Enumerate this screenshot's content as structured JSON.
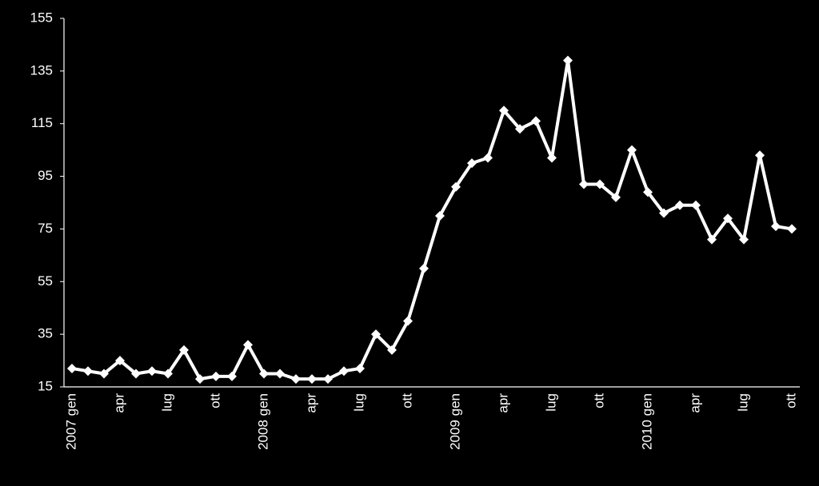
{
  "chart_data": {
    "type": "line",
    "categories": [
      "2007 gen",
      null,
      null,
      "apr",
      null,
      null,
      "lug",
      null,
      null,
      "ott",
      null,
      null,
      "2008 gen",
      null,
      null,
      "apr",
      null,
      null,
      "lug",
      null,
      null,
      "ott",
      null,
      null,
      "2009 gen",
      null,
      null,
      "apr",
      null,
      null,
      "lug",
      null,
      null,
      "ott",
      null,
      null,
      "2010 gen",
      null,
      null,
      "apr",
      null,
      null,
      "lug",
      null,
      null,
      "ott"
    ],
    "series": [
      {
        "color": "#ffffff",
        "values": [
          22,
          21,
          20,
          25,
          20,
          21,
          20,
          29,
          18,
          19,
          19,
          31,
          20,
          20,
          18,
          18,
          18,
          21,
          22,
          35,
          29,
          40,
          60,
          80,
          91,
          100,
          102,
          120,
          113,
          116,
          102,
          139,
          92,
          92,
          87,
          105,
          89,
          81,
          84,
          84,
          71,
          79,
          71,
          103,
          76,
          75
        ]
      }
    ],
    "ylim": [
      15,
      155
    ],
    "yticks": [
      15,
      35,
      55,
      75,
      95,
      115,
      135,
      155
    ],
    "grid": false
  }
}
